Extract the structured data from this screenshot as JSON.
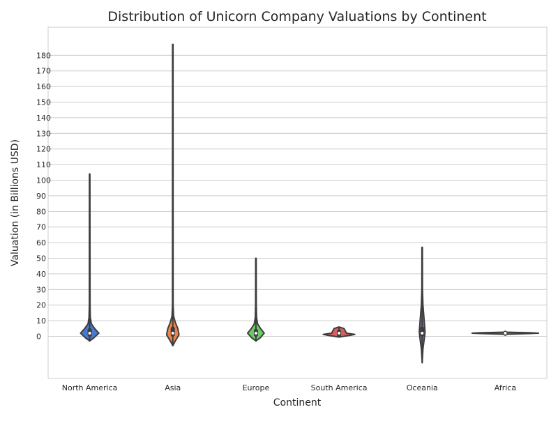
{
  "chart_data": {
    "type": "violin",
    "title": "Distribution of Unicorn Company Valuations by Continent",
    "xlabel": "Continent",
    "ylabel": "Valuation (in Billions USD)",
    "ylim": [
      -27,
      198
    ],
    "yticks": [
      0,
      10,
      20,
      30,
      40,
      50,
      60,
      70,
      80,
      90,
      100,
      110,
      120,
      130,
      140,
      150,
      160,
      170,
      180
    ],
    "grid": "y",
    "categories": [
      "North America",
      "Asia",
      "Europe",
      "South America",
      "Oceania",
      "Africa"
    ],
    "colors": [
      "#4878d0",
      "#ee854a",
      "#6acc64",
      "#d65f5f",
      "#956cb4",
      "#8c613c"
    ],
    "series": [
      {
        "name": "North America",
        "min": -3,
        "max": 104,
        "median": 2,
        "q1": 1,
        "q3": 4,
        "density": [
          [
            -3,
            0
          ],
          [
            -1,
            0.05
          ],
          [
            2,
            0.11
          ],
          [
            5,
            0.06
          ],
          [
            8,
            0.02
          ],
          [
            12,
            0.008
          ],
          [
            20,
            0.004
          ],
          [
            104,
            0.003
          ]
        ]
      },
      {
        "name": "Asia",
        "min": -6,
        "max": 187,
        "median": 2,
        "q1": 1,
        "q3": 5,
        "density": [
          [
            -6,
            0
          ],
          [
            -3,
            0.03
          ],
          [
            1,
            0.075
          ],
          [
            5,
            0.06
          ],
          [
            9,
            0.03
          ],
          [
            13,
            0.01
          ],
          [
            20,
            0.004
          ],
          [
            187,
            0.003
          ]
        ]
      },
      {
        "name": "Europe",
        "min": -3,
        "max": 50,
        "median": 2,
        "q1": 1,
        "q3": 3.5,
        "density": [
          [
            -3,
            0
          ],
          [
            -1,
            0.05
          ],
          [
            2,
            0.1
          ],
          [
            5,
            0.055
          ],
          [
            8,
            0.02
          ],
          [
            12,
            0.008
          ],
          [
            20,
            0.004
          ],
          [
            50,
            0.003
          ]
        ]
      },
      {
        "name": "South America",
        "min": -0.5,
        "max": 6,
        "median": 2,
        "q1": 1,
        "q3": 3,
        "density": [
          [
            -0.5,
            0
          ],
          [
            0.5,
            0.12
          ],
          [
            1.2,
            0.19
          ],
          [
            2,
            0.09
          ],
          [
            4,
            0.07
          ],
          [
            5,
            0.06
          ],
          [
            6,
            0
          ]
        ]
      },
      {
        "name": "Oceania",
        "min": -17,
        "max": 57,
        "median": 2,
        "q1": 1,
        "q3": 5,
        "density": [
          [
            -17,
            0
          ],
          [
            -8,
            0.01
          ],
          [
            0,
            0.03
          ],
          [
            3,
            0.035
          ],
          [
            10,
            0.025
          ],
          [
            20,
            0.01
          ],
          [
            30,
            0.004
          ],
          [
            57,
            0.003
          ]
        ]
      },
      {
        "name": "Africa",
        "min": 1.3,
        "max": 2.7,
        "median": 2,
        "q1": 1.6,
        "q3": 2.3,
        "density": [
          [
            1.3,
            0
          ],
          [
            1.8,
            0.3
          ],
          [
            2,
            0.4
          ],
          [
            2.3,
            0.3
          ],
          [
            2.7,
            0
          ]
        ]
      }
    ]
  }
}
